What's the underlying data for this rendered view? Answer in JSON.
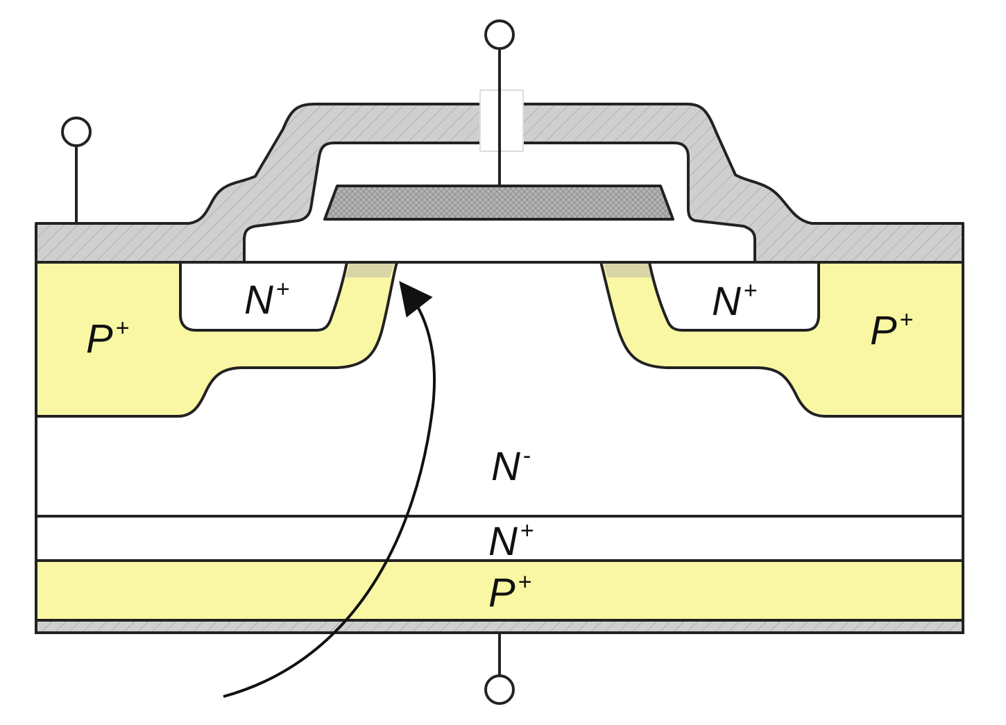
{
  "colors": {
    "p_region": "#faf7a4",
    "metal": "#cfcfcf",
    "outline": "#222222",
    "gate": "#b4b4b4",
    "background": "#ffffff"
  },
  "regions": {
    "left_emitter": {
      "base": "N",
      "sup": "+"
    },
    "right_emitter": {
      "base": "N",
      "sup": "+"
    },
    "left_body": {
      "base": "P",
      "sup": "+"
    },
    "right_body": {
      "base": "P",
      "sup": "+"
    },
    "drift": {
      "base": "N",
      "sup": "-"
    },
    "buffer": {
      "base": "N",
      "sup": "+"
    },
    "collector": {
      "base": "P",
      "sup": "+"
    }
  }
}
